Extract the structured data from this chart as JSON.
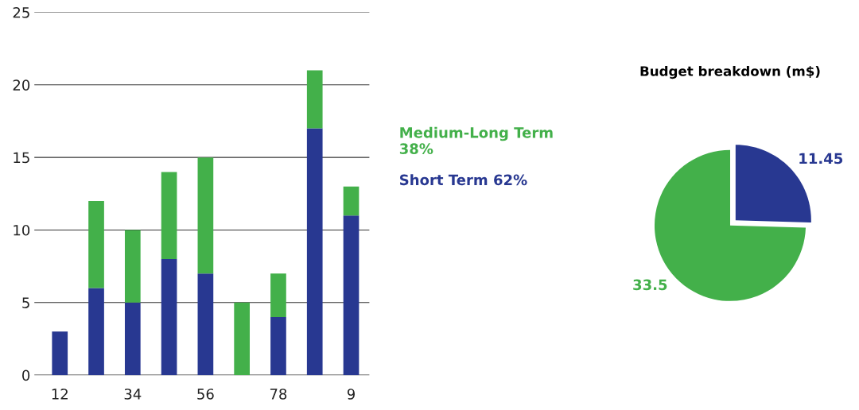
{
  "chart_data": [
    {
      "type": "bar",
      "stacked": true,
      "categories": [
        "12",
        null,
        "34",
        null,
        "56",
        null,
        "78",
        null,
        "9"
      ],
      "series": [
        {
          "name": "Short Term 62%",
          "color": "#283891",
          "values": [
            3,
            6,
            5,
            8,
            7,
            0,
            4,
            17,
            11
          ]
        },
        {
          "name": "Medium-Long Term 38%",
          "color": "#43b04a",
          "values": [
            0,
            6,
            5,
            6,
            8,
            5,
            3,
            4,
            2
          ]
        }
      ],
      "ylim": [
        0,
        25
      ],
      "yticks": [
        0,
        5,
        10,
        15,
        20,
        25
      ],
      "grid": "y",
      "legend": "right"
    },
    {
      "type": "pie",
      "title": "Budget breakdown (m$)",
      "categories": [
        null,
        null
      ],
      "values": [
        11.45,
        33.5
      ],
      "colors": [
        "#283891",
        "#43b04a"
      ],
      "data_labels": true
    }
  ]
}
